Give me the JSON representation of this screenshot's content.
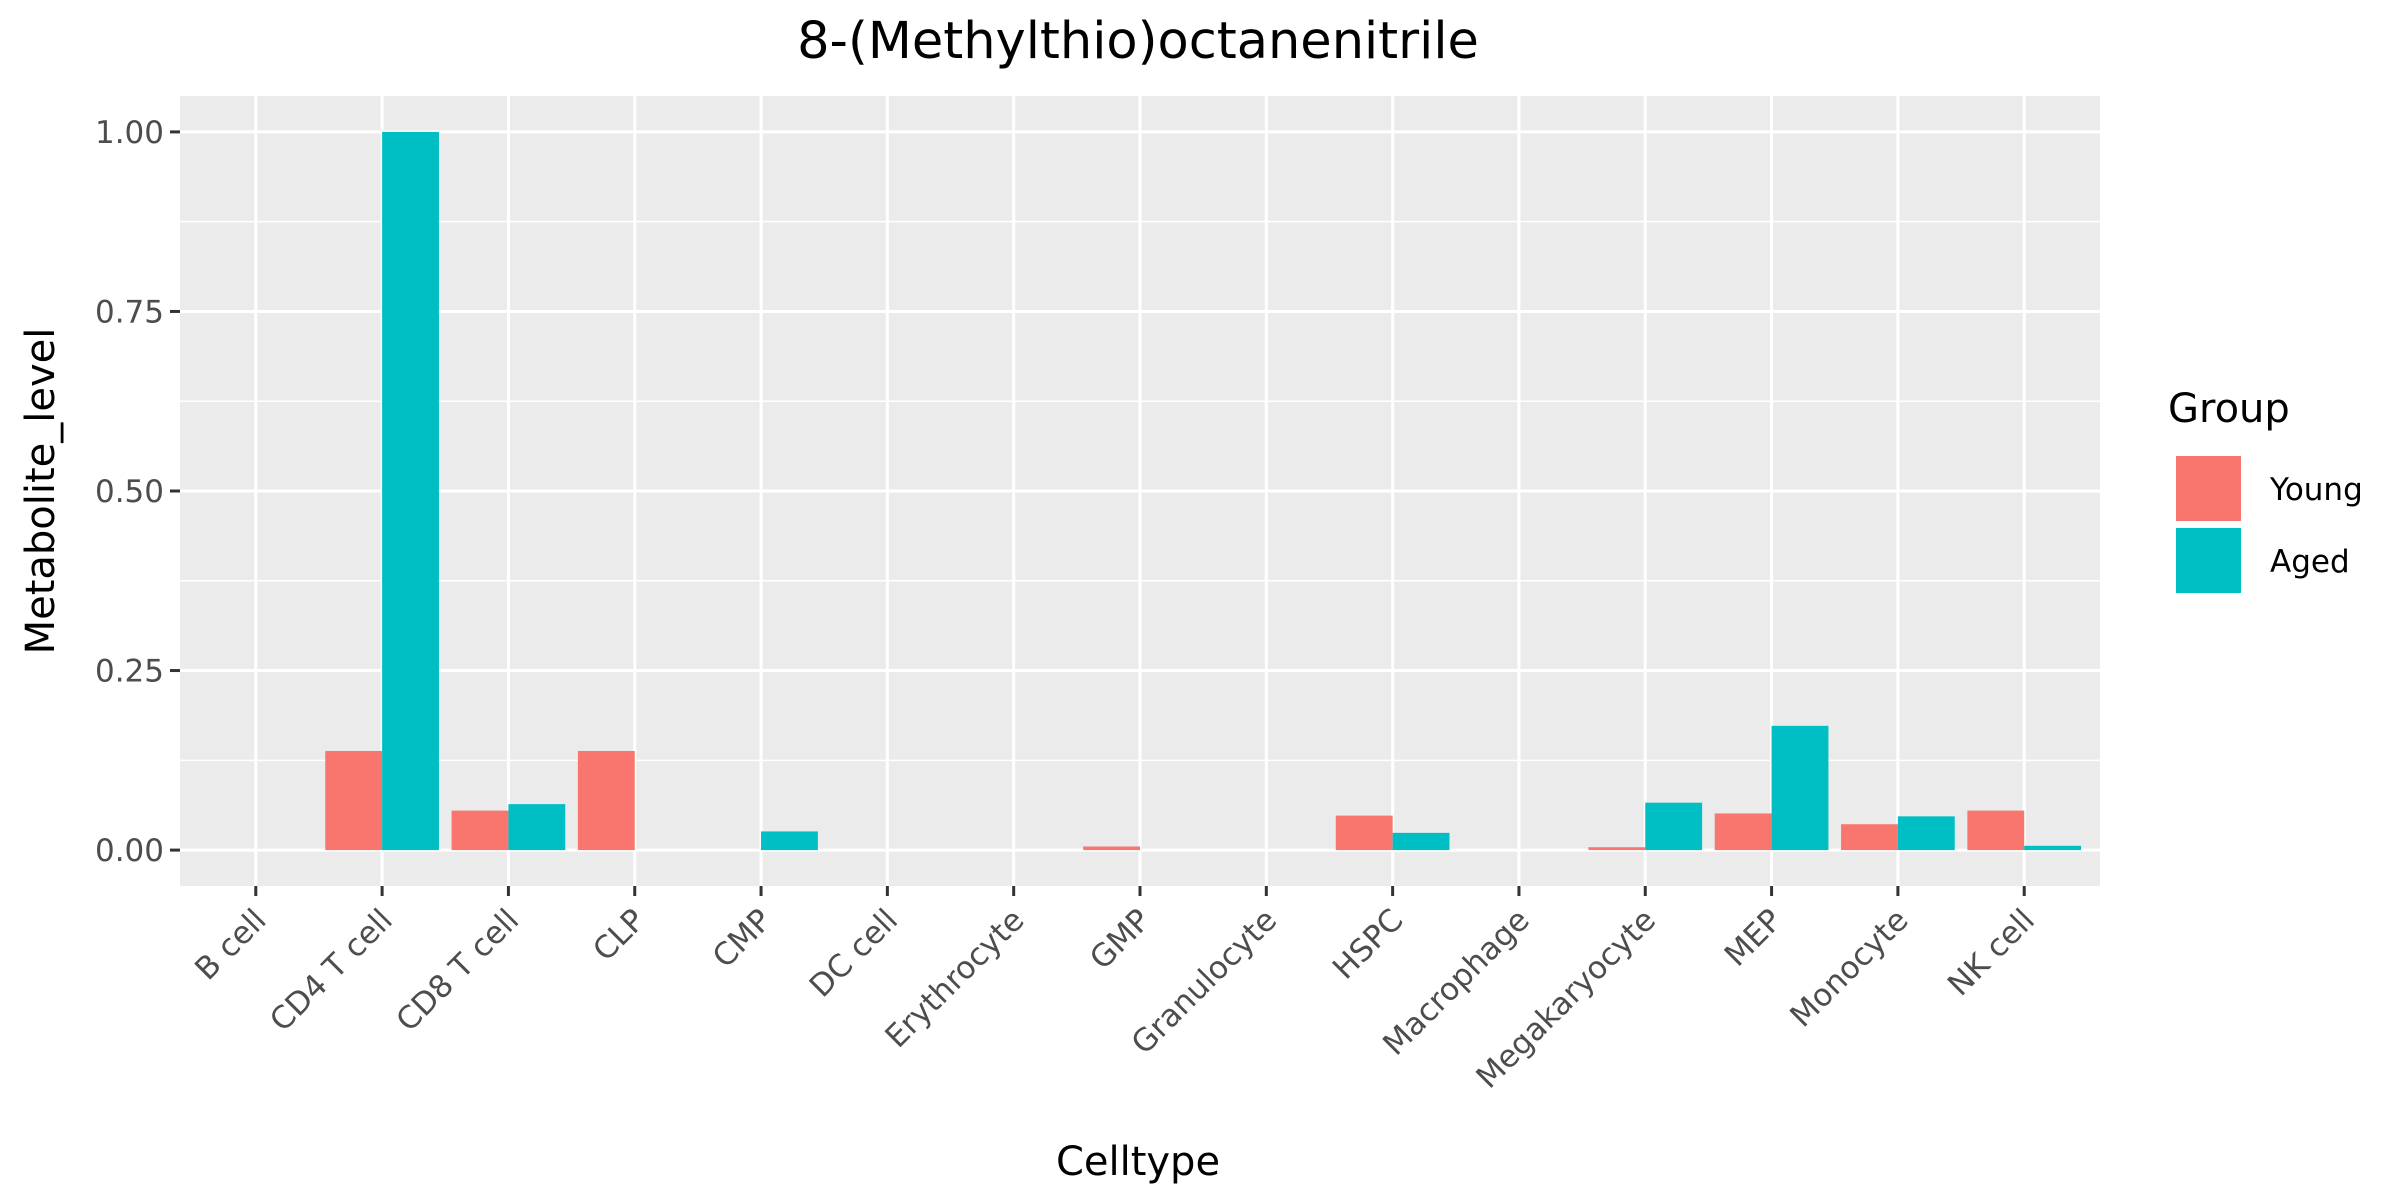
{
  "chart_data": {
    "type": "bar",
    "title": "8-(Methylthio)octanenitrile",
    "xlabel": "Celltype",
    "ylabel": "Metabolite_level",
    "categories": [
      "B cell",
      "CD4 T cell",
      "CD8 T cell",
      "CLP",
      "CMP",
      "DC cell",
      "Erythrocyte",
      "GMP",
      "Granulocyte",
      "HSPC",
      "Macrophage",
      "Megakaryocyte",
      "MEP",
      "Monocyte",
      "NK cell"
    ],
    "series": [
      {
        "name": "Young",
        "color": "#F8766D",
        "values": [
          0,
          0.138,
          0.055,
          0.138,
          0,
          0,
          0,
          0.005,
          0,
          0.048,
          0,
          0.004,
          0.051,
          0.036,
          0.055
        ]
      },
      {
        "name": "Aged",
        "color": "#00BFC4",
        "values": [
          0,
          1.0,
          0.064,
          0,
          0.026,
          0,
          0,
          0,
          0,
          0.024,
          0,
          0.066,
          0.173,
          0.047,
          0.006
        ]
      }
    ],
    "ylim": [
      -0.05,
      1.05
    ],
    "yticks": [
      0.0,
      0.25,
      0.5,
      0.75,
      1.0
    ],
    "ytick_labels": [
      "0.00",
      "0.25",
      "0.50",
      "0.75",
      "1.00"
    ],
    "legend": {
      "title": "Group",
      "position": "right"
    },
    "grid": true,
    "panel_background": "#EBEBEB"
  }
}
